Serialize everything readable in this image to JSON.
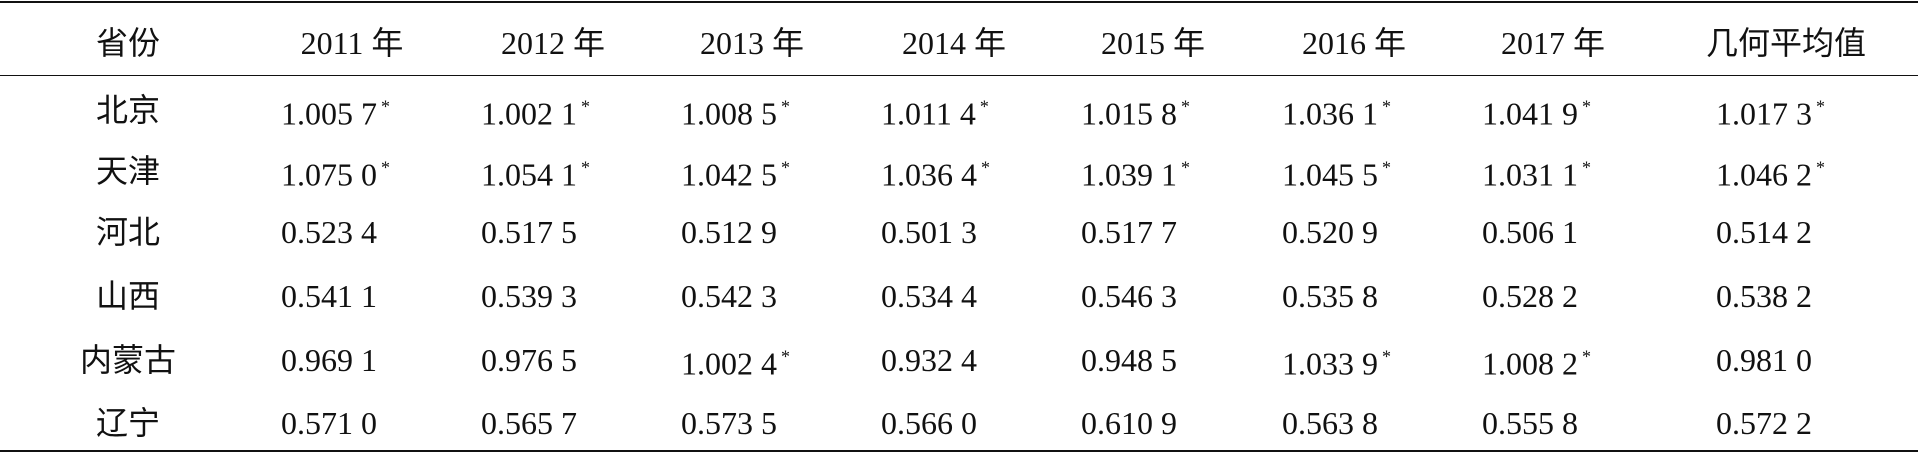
{
  "table": {
    "header": [
      "省份",
      "2011 年",
      "2012 年",
      "2013 年",
      "2014 年",
      "2015 年",
      "2016 年",
      "2017 年",
      "几何平均值"
    ],
    "rows": [
      {
        "province": "北京",
        "cells": [
          {
            "text": "1.005 7",
            "note": "*"
          },
          {
            "text": "1.002 1",
            "note": "*"
          },
          {
            "text": "1.008 5",
            "note": "*"
          },
          {
            "text": "1.011 4",
            "note": "*"
          },
          {
            "text": "1.015 8",
            "note": "*"
          },
          {
            "text": "1.036 1",
            "note": "*"
          },
          {
            "text": "1.041 9",
            "note": "*"
          },
          {
            "text": "1.017 3",
            "note": "*"
          }
        ]
      },
      {
        "province": "天津",
        "cells": [
          {
            "text": "1.075 0",
            "note": "*"
          },
          {
            "text": "1.054 1",
            "note": "*"
          },
          {
            "text": "1.042 5",
            "note": "*"
          },
          {
            "text": "1.036 4",
            "note": "*"
          },
          {
            "text": "1.039 1",
            "note": "*"
          },
          {
            "text": "1.045 5",
            "note": "*"
          },
          {
            "text": "1.031 1",
            "note": "*"
          },
          {
            "text": "1.046 2",
            "note": "*"
          }
        ]
      },
      {
        "province": "河北",
        "cells": [
          {
            "text": "0.523 4"
          },
          {
            "text": "0.517 5"
          },
          {
            "text": "0.512 9"
          },
          {
            "text": "0.501 3"
          },
          {
            "text": "0.517 7"
          },
          {
            "text": "0.520 9"
          },
          {
            "text": "0.506 1"
          },
          {
            "text": "0.514 2"
          }
        ]
      },
      {
        "province": "山西",
        "cells": [
          {
            "text": "0.541 1"
          },
          {
            "text": "0.539 3"
          },
          {
            "text": "0.542 3"
          },
          {
            "text": "0.534 4"
          },
          {
            "text": "0.546 3"
          },
          {
            "text": "0.535 8"
          },
          {
            "text": "0.528 2"
          },
          {
            "text": "0.538 2"
          }
        ]
      },
      {
        "province": "内蒙古",
        "cells": [
          {
            "text": "0.969 1"
          },
          {
            "text": "0.976 5"
          },
          {
            "text": "1.002 4",
            "note": "*"
          },
          {
            "text": "0.932 4"
          },
          {
            "text": "0.948 5"
          },
          {
            "text": "1.033 9",
            "note": "*"
          },
          {
            "text": "1.008 2",
            "note": "*"
          },
          {
            "text": "0.981 0"
          }
        ]
      },
      {
        "province": "辽宁",
        "cells": [
          {
            "text": "0.571 0"
          },
          {
            "text": "0.565 7"
          },
          {
            "text": "0.573 5"
          },
          {
            "text": "0.566 0"
          },
          {
            "text": "0.610 9"
          },
          {
            "text": "0.563 8"
          },
          {
            "text": "0.555 8"
          },
          {
            "text": "0.572 2"
          }
        ]
      }
    ]
  }
}
